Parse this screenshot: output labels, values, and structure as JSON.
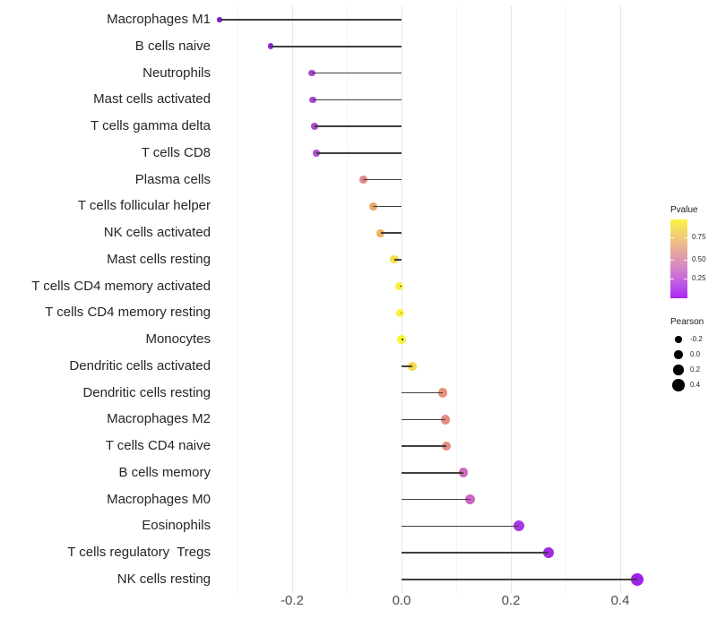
{
  "figure": {
    "background": "#ffffff"
  },
  "chart_data": {
    "type": "scatter",
    "variant": "lollipop",
    "orientation": "horizontal",
    "title": "",
    "xlabel": "",
    "ylabel": "",
    "grid": true,
    "baseline": 0.0,
    "x_axis": {
      "range": [
        -0.37,
        0.47
      ],
      "tick_values": [
        -0.2,
        0.0,
        0.2,
        0.4
      ],
      "tick_labels": [
        "-0.2",
        "0.0",
        "0.2",
        "0.4"
      ],
      "minor_grid_values": [
        -0.3,
        -0.1,
        0.1,
        0.3
      ]
    },
    "points": [
      {
        "label": "Macrophages M1",
        "pearson": -0.333,
        "color": "#7F1CDB"
      },
      {
        "label": "B cells naive",
        "pearson": -0.239,
        "color": "#9322DC"
      },
      {
        "label": "Neutrophils",
        "pearson": -0.164,
        "color": "#A648D0"
      },
      {
        "label": "Mast cells activated",
        "pearson": -0.162,
        "color": "#A648D0"
      },
      {
        "label": "T cells gamma delta",
        "pearson": -0.159,
        "color": "#A94BD2"
      },
      {
        "label": "T cells CD8",
        "pearson": -0.156,
        "color": "#AB4ED2"
      },
      {
        "label": "Plasma cells",
        "pearson": -0.07,
        "color": "#DF8B8B"
      },
      {
        "label": "T cells follicular helper",
        "pearson": -0.052,
        "color": "#EAA768"
      },
      {
        "label": "NK cells activated",
        "pearson": -0.038,
        "color": "#EDB15C"
      },
      {
        "label": "Mast cells resting",
        "pearson": -0.013,
        "color": "#F3DE4B"
      },
      {
        "label": "T cells CD4 memory activated",
        "pearson": -0.004,
        "color": "#F9F23D"
      },
      {
        "label": "T cells CD4 memory resting",
        "pearson": -0.002,
        "color": "#F9F23D"
      },
      {
        "label": "Monocytes",
        "pearson": 0.0,
        "color": "#F9F43B"
      },
      {
        "label": "Dendritic cells activated",
        "pearson": 0.02,
        "color": "#F2DB4D"
      },
      {
        "label": "Dendritic cells resting",
        "pearson": 0.075,
        "color": "#E69178"
      },
      {
        "label": "Macrophages M2",
        "pearson": 0.08,
        "color": "#E38D82"
      },
      {
        "label": "T cells CD4 naive",
        "pearson": 0.082,
        "color": "#E28C86"
      },
      {
        "label": "B cells memory",
        "pearson": 0.113,
        "color": "#CF6ABE"
      },
      {
        "label": "Macrophages M0",
        "pearson": 0.126,
        "color": "#CD65C6"
      },
      {
        "label": "Eosinophils",
        "pearson": 0.215,
        "color": "#A637E2"
      },
      {
        "label": "T cells regulatory  Tregs",
        "pearson": 0.269,
        "color": "#A12BE7"
      },
      {
        "label": "NK cells resting",
        "pearson": 0.431,
        "color": "#9E20EE"
      }
    ]
  },
  "legend": {
    "pvalue": {
      "title": "Pvalue",
      "tick_labels": [
        "0.75",
        "0.50",
        "0.25"
      ],
      "gradient_top_to_bottom": [
        "#FBF340",
        "#F4D867",
        "#EDBE85",
        "#E5A3A2",
        "#DA8CC0",
        "#CB70D9",
        "#B94FEA",
        "#A928F2"
      ]
    },
    "pearson": {
      "title": "Pearson",
      "items": [
        {
          "label": "-0.2",
          "diameter": 7.5
        },
        {
          "label": "0.0",
          "diameter": 9.5
        },
        {
          "label": "0.2",
          "diameter": 11.5
        },
        {
          "label": "0.4",
          "diameter": 13.5
        }
      ]
    }
  }
}
